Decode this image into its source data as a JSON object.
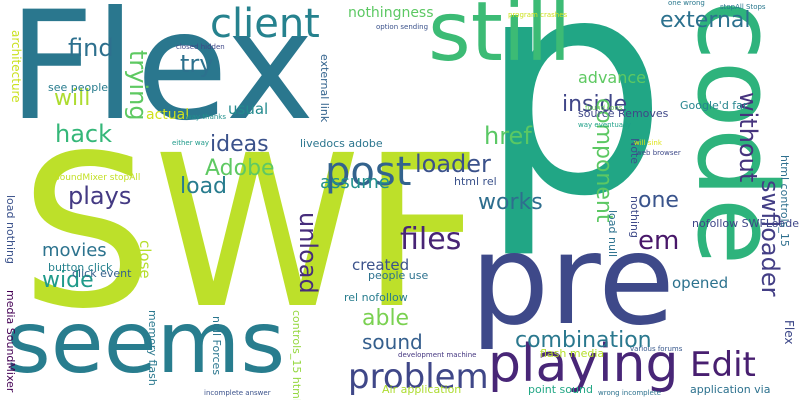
{
  "words": [
    {
      "text": "p",
      "color": "#21a685",
      "rot": 0
    },
    {
      "text": "SWF",
      "color": "#bde02a",
      "rot": 0
    },
    {
      "text": "Flex",
      "color": "#2a778e",
      "rot": 0
    },
    {
      "text": "pre",
      "color": "#3e4989",
      "rot": 0
    },
    {
      "text": "code",
      "color": "#2eb37c",
      "rot": 90
    },
    {
      "text": "seems",
      "color": "#287d8e",
      "rot": 0
    },
    {
      "text": "still",
      "color": "#3cbb75",
      "rot": 0
    },
    {
      "text": "client",
      "color": "#26828e",
      "rot": 0
    },
    {
      "text": "playing",
      "color": "#482677",
      "rot": 0
    },
    {
      "text": "problem",
      "color": "#3f4788",
      "rot": 0
    },
    {
      "text": "post",
      "color": "#33638d",
      "rot": 0
    },
    {
      "text": "Edit",
      "color": "#481f70",
      "rot": 0
    },
    {
      "text": "swfloader",
      "color": "#433e85",
      "rot": 90
    },
    {
      "text": "without",
      "color": "#46337e",
      "rot": 90
    },
    {
      "text": "external",
      "color": "#2c718e",
      "rot": 0
    },
    {
      "text": "files",
      "color": "#482475",
      "rot": 0
    },
    {
      "text": "unload",
      "color": "#472d7b",
      "rot": 90
    },
    {
      "text": "combination",
      "color": "#2a788e",
      "rot": 0
    },
    {
      "text": "find",
      "color": "#2d708e",
      "rot": 0
    },
    {
      "text": "trying",
      "color": "#5ec962",
      "rot": 90
    },
    {
      "text": "try",
      "color": "#2d718e",
      "rot": 0
    },
    {
      "text": "inside",
      "color": "#404688",
      "rot": 0
    },
    {
      "text": "loader",
      "color": "#3b528b",
      "rot": 0
    },
    {
      "text": "plays",
      "color": "#443a83",
      "rot": 0
    },
    {
      "text": "hack",
      "color": "#35b779",
      "rot": 0
    },
    {
      "text": "will",
      "color": "#addc30",
      "rot": 0
    },
    {
      "text": "ideas",
      "color": "#3b528b",
      "rot": 0
    },
    {
      "text": "Adobe",
      "color": "#5ec962",
      "rot": 0
    },
    {
      "text": "load",
      "color": "#287c8e",
      "rot": 0
    },
    {
      "text": "works",
      "color": "#2e6e8e",
      "rot": 0
    },
    {
      "text": "component",
      "color": "#5cc863",
      "rot": 90
    },
    {
      "text": "one",
      "color": "#3a548c",
      "rot": 0
    },
    {
      "text": "em",
      "color": "#481769",
      "rot": 0
    },
    {
      "text": "href",
      "color": "#5ac864",
      "rot": 0
    },
    {
      "text": "wide",
      "color": "#1f9a8a",
      "rot": 0
    },
    {
      "text": "able",
      "color": "#7ad151",
      "rot": 0
    },
    {
      "text": "sound",
      "color": "#355f8d",
      "rot": 0
    },
    {
      "text": "movies",
      "color": "#2c738e",
      "rot": 0
    },
    {
      "text": "assume",
      "color": "#21908d",
      "rot": 0
    },
    {
      "text": "created",
      "color": "#3b528b",
      "rot": 0
    },
    {
      "text": "opened",
      "color": "#2c728e",
      "rot": 0
    },
    {
      "text": "advance",
      "color": "#5ec962",
      "rot": 0
    },
    {
      "text": "usual",
      "color": "#238a8d",
      "rot": 0
    },
    {
      "text": "close",
      "color": "#b5de2b",
      "rot": 90
    },
    {
      "text": "nothingness",
      "color": "#5cc863",
      "rot": 0
    },
    {
      "text": "actual",
      "color": "#d0e11c",
      "rot": 0
    },
    {
      "text": "architecture",
      "color": "#cae11f",
      "rot": 90
    },
    {
      "text": "see people",
      "color": "#287c8e",
      "rot": 0
    },
    {
      "text": "source Removes",
      "color": "#3f4788",
      "rot": 0
    },
    {
      "text": "Google'd far",
      "color": "#25858e",
      "rot": 0
    },
    {
      "text": "nofollow SWFLoader",
      "color": "#3f4788",
      "rot": 0
    },
    {
      "text": "external link",
      "color": "#33638d",
      "rot": 90
    },
    {
      "text": "livedocs adobe",
      "color": "#2b758e",
      "rot": 0
    },
    {
      "text": "html rel",
      "color": "#3b528b",
      "rot": 0
    },
    {
      "text": "load null",
      "color": "#2c718e",
      "rot": 90
    },
    {
      "text": "people use",
      "color": "#2c718e",
      "rot": 0
    },
    {
      "text": "click event",
      "color": "#34618d",
      "rot": 0
    },
    {
      "text": "button click",
      "color": "#26828e",
      "rot": 0
    },
    {
      "text": "rel nofollow",
      "color": "#287d8e",
      "rot": 0
    },
    {
      "text": "html controls_15",
      "color": "#2e6f8e",
      "rot": 90
    },
    {
      "text": "SoundMixer stopAll",
      "color": "#c2df23",
      "rot": 0
    },
    {
      "text": "media SoundMixer",
      "color": "#440154",
      "rot": 90
    },
    {
      "text": "load nothing",
      "color": "#3b528b",
      "rot": 90
    },
    {
      "text": "memory flash",
      "color": "#2a788e",
      "rot": 90
    },
    {
      "text": "null Forces",
      "color": "#2a768e",
      "rot": 90
    },
    {
      "text": "controls_15 html",
      "color": "#95d840",
      "rot": 90
    },
    {
      "text": "flash media",
      "color": "#b5de2b",
      "rot": 0
    },
    {
      "text": "point sound",
      "color": "#22a785",
      "rot": 0
    },
    {
      "text": "Air application",
      "color": "#addc30",
      "rot": 0
    },
    {
      "text": "application via",
      "color": "#2c718e",
      "rot": 0
    },
    {
      "text": "nothing",
      "color": "#3e4a89",
      "rot": 90
    },
    {
      "text": "Note",
      "color": "#3b518b",
      "rot": 90
    },
    {
      "text": "web browser",
      "color": "#3e4a89",
      "rot": 0
    },
    {
      "text": "found tons",
      "color": "#6ece58",
      "rot": 0
    },
    {
      "text": "way eventually",
      "color": "#1fa088",
      "rot": 0
    },
    {
      "text": "will sink",
      "color": "#dde318",
      "rot": 0
    },
    {
      "text": "various forums",
      "color": "#38588c",
      "rot": 0
    },
    {
      "text": "development machine",
      "color": "#453781",
      "rot": 0
    },
    {
      "text": "wrong incomplete",
      "color": "#2c728e",
      "rot": 0
    },
    {
      "text": "incomplete answer",
      "color": "#3b528b",
      "rot": 0
    },
    {
      "text": "either way",
      "color": "#1f9a8a",
      "rot": 0
    },
    {
      "text": "way thanks",
      "color": "#21918c",
      "rot": 0
    },
    {
      "text": "closed hidden",
      "color": "#3f4788",
      "rot": 0
    },
    {
      "text": "option sending",
      "color": "#3b528b",
      "rot": 0
    },
    {
      "text": "program crashes",
      "color": "#cde11d",
      "rot": 0
    },
    {
      "text": "one wrong",
      "color": "#2a788e",
      "rot": 0
    },
    {
      "text": "stopAll Stops",
      "color": "#2a788e",
      "rot": 0
    },
    {
      "text": "Flex",
      "color": "#3e4989",
      "rot": 90
    }
  ]
}
